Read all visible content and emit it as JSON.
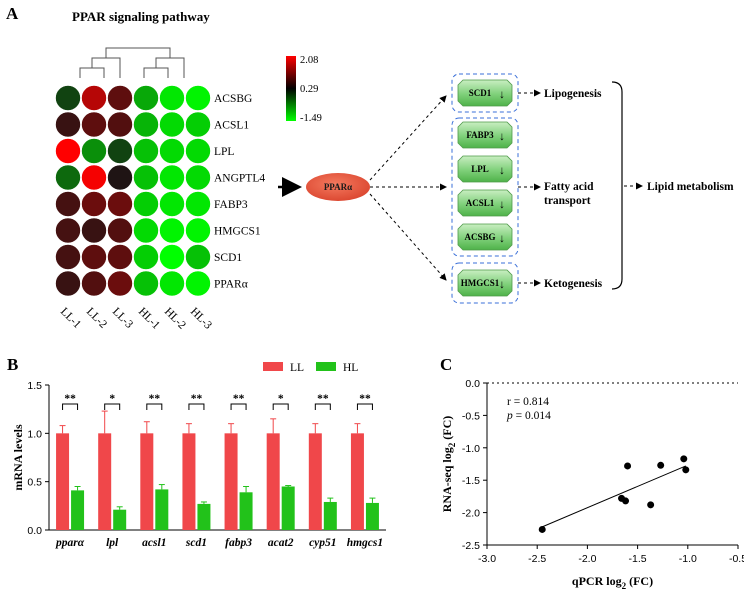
{
  "panels": {
    "a_letter": "A",
    "b_letter": "B",
    "c_letter": "C"
  },
  "heatmap": {
    "title": "PPAR signaling pathway",
    "genes": [
      "ACSBG",
      "ACSL1",
      "LPL",
      "ANGPTL4",
      "FABP3",
      "HMGCS1",
      "SCD1",
      "PPARα"
    ],
    "samples": [
      "LL-1",
      "LL-2",
      "LL-3",
      "HL-1",
      "HL-2",
      "HL-3"
    ],
    "scale_labels": [
      "2.08",
      "0.29",
      "-1.49"
    ],
    "scale_colors": [
      "#ff0000",
      "#000000",
      "#00ff00"
    ],
    "values": [
      [
        0.0,
        1.5,
        0.8,
        -0.8,
        -1.3,
        -1.4
      ],
      [
        0.5,
        0.8,
        0.7,
        -0.9,
        -1.2,
        -1.1
      ],
      [
        2.08,
        -0.6,
        0.0,
        -1.0,
        -1.2,
        -1.2
      ],
      [
        -0.3,
        2.0,
        0.3,
        -1.0,
        -1.3,
        -1.2
      ],
      [
        0.6,
        0.9,
        0.9,
        -1.1,
        -1.3,
        -1.3
      ],
      [
        0.6,
        0.5,
        0.7,
        -1.2,
        -1.4,
        -1.4
      ],
      [
        0.6,
        0.8,
        0.8,
        -1.1,
        -1.49,
        -1.0
      ],
      [
        0.5,
        0.7,
        0.9,
        -1.0,
        -1.3,
        -1.4
      ]
    ]
  },
  "pathway": {
    "center": "PPARα",
    "group1_genes": [
      "SCD1"
    ],
    "group2_genes": [
      "FABP3",
      "LPL",
      "ACSL1",
      "ACSBG"
    ],
    "group3_genes": [
      "HMGCS1"
    ],
    "down_arrow": "↓",
    "outcome1": "Lipogenesis",
    "outcome2_line1": "Fatty acid",
    "outcome2_line2": "transport",
    "outcome3": "Ketogenesis",
    "final": "Lipid metabolism",
    "colors": {
      "gene_fill": "#7fd07a",
      "oval_fill": "#e8553a",
      "group_border": "#3a6fd8"
    }
  },
  "bar_legend": [
    "LL",
    "HL"
  ],
  "chart_data": [
    {
      "type": "bar",
      "ylabel": "mRNA levels",
      "ylim": [
        0,
        1.5
      ],
      "yticks": [
        "0.0",
        "0.5",
        "1.0",
        "1.5"
      ],
      "categories": [
        "pparα",
        "lpl",
        "acsl1",
        "scd1",
        "fabp3",
        "acat2",
        "cyp51",
        "hmgcs1"
      ],
      "significance": [
        "**",
        "*",
        "**",
        "**",
        "**",
        "*",
        "**",
        "**"
      ],
      "colors": [
        "#f0474a",
        "#22c21a"
      ],
      "series": [
        {
          "name": "LL",
          "values": [
            1.0,
            1.0,
            1.0,
            1.0,
            1.0,
            1.0,
            1.0,
            1.0
          ],
          "errors": [
            0.08,
            0.23,
            0.12,
            0.1,
            0.1,
            0.15,
            0.1,
            0.1
          ]
        },
        {
          "name": "HL",
          "values": [
            0.41,
            0.21,
            0.42,
            0.27,
            0.39,
            0.45,
            0.29,
            0.28
          ],
          "errors": [
            0.04,
            0.03,
            0.05,
            0.02,
            0.06,
            0.01,
            0.04,
            0.05
          ]
        }
      ]
    },
    {
      "type": "scatter",
      "xlabel_main": "qPCR log",
      "xlabel_sub": "2",
      "xlabel_tail": " (FC)",
      "ylabel_main": "RNA-seq log",
      "ylabel_sub": "2",
      "ylabel_tail": " (FC)",
      "xlim": [
        -3.0,
        -0.5
      ],
      "ylim": [
        -2.5,
        0.0
      ],
      "xticks": [
        "-3.0",
        "-2.5",
        "-2.0",
        "-1.5",
        "-1.0",
        "-0.5"
      ],
      "yticks": [
        "0.0",
        "-0.5",
        "-1.0",
        "-1.5",
        "-2.0",
        "-2.5"
      ],
      "r_text": "r = 0.814",
      "p_label": "p",
      "p_value": " = 0.014",
      "x": [
        -2.45,
        -1.66,
        -1.62,
        -1.6,
        -1.37,
        -1.27,
        -1.04,
        -1.02
      ],
      "y": [
        -2.26,
        -1.78,
        -1.82,
        -1.28,
        -1.88,
        -1.27,
        -1.17,
        -1.34
      ],
      "fit": {
        "x": [
          -2.45,
          -1.02
        ],
        "y": [
          -2.22,
          -1.28
        ]
      }
    }
  ]
}
